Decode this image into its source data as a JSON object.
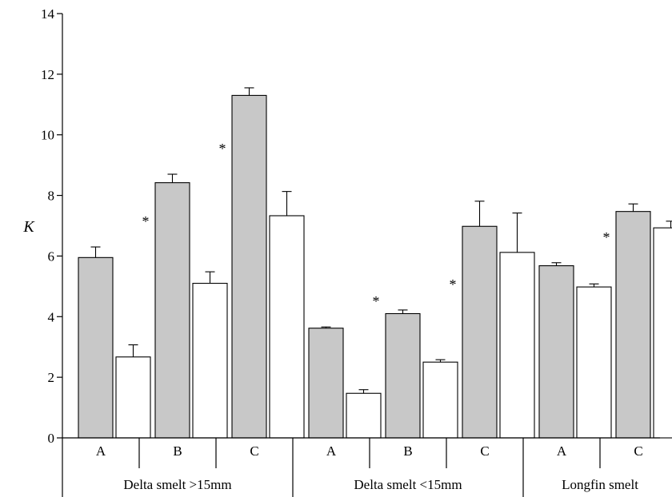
{
  "chart_data": {
    "type": "bar",
    "title": "",
    "xlabel": "",
    "ylabel": "K",
    "ylim": [
      0,
      14
    ],
    "yticks": [
      "0",
      "2",
      "4",
      "6",
      "8",
      "10",
      "12",
      "14"
    ],
    "grid": false,
    "legend": "none",
    "groups": [
      {
        "name": "Delta smelt >15mm",
        "categories": [
          {
            "label": "A",
            "gray": 5.95,
            "gray_err": 0.35,
            "white": 2.67,
            "white_err": 0.4,
            "significant": true,
            "star": "*"
          },
          {
            "label": "B",
            "gray": 8.42,
            "gray_err": 0.28,
            "white": 5.1,
            "white_err": 0.38,
            "significant": true,
            "star": "*"
          },
          {
            "label": "C",
            "gray": 11.3,
            "gray_err": 0.25,
            "white": 7.33,
            "white_err": 0.8,
            "significant": false
          }
        ]
      },
      {
        "name": "Delta smelt <15mm",
        "categories": [
          {
            "label": "A",
            "gray": 3.62,
            "gray_err": 0.04,
            "white": 1.47,
            "white_err": 0.12,
            "significant": true,
            "star": "*"
          },
          {
            "label": "B",
            "gray": 4.1,
            "gray_err": 0.12,
            "white": 2.5,
            "white_err": 0.08,
            "significant": true,
            "star": "*"
          },
          {
            "label": "C",
            "gray": 6.98,
            "gray_err": 0.83,
            "white": 6.12,
            "white_err": 1.3,
            "significant": false
          }
        ]
      },
      {
        "name": "Longfin smelt",
        "categories": [
          {
            "label": "A",
            "gray": 5.68,
            "gray_err": 0.1,
            "white": 4.98,
            "white_err": 0.1,
            "significant": true,
            "star": "*"
          },
          {
            "label": "C",
            "gray": 7.47,
            "gray_err": 0.25,
            "white": 6.93,
            "white_err": 0.22,
            "significant": true,
            "star": "*"
          }
        ]
      }
    ],
    "colors": {
      "gray": "#c8c8c8",
      "white": "#ffffff",
      "stroke": "#000000"
    }
  }
}
